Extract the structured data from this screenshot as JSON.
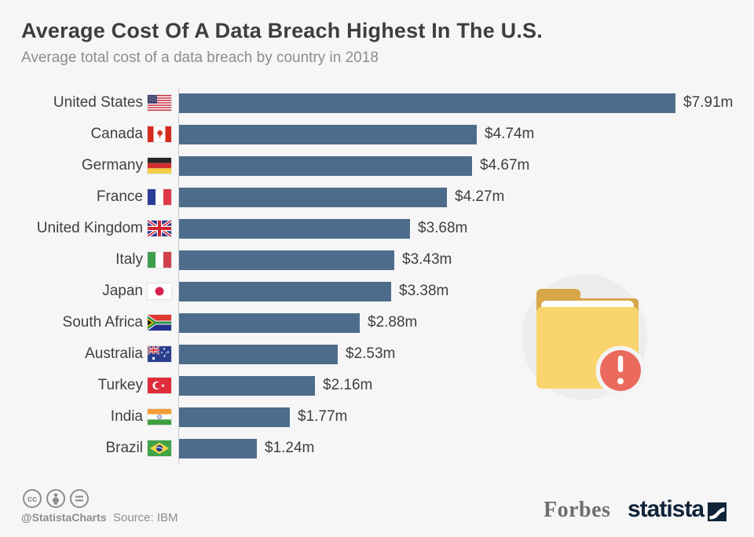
{
  "header": {
    "title": "Average Cost Of A Data Breach Highest In The U.S.",
    "subtitle": "Average total cost of a data breach by country in 2018"
  },
  "chart_data": {
    "type": "bar",
    "orientation": "horizontal",
    "title": "Average Cost Of A Data Breach Highest In The U.S.",
    "subtitle": "Average total cost of a data breach by country in 2018",
    "unit": "million US dollars",
    "categories": [
      "United States",
      "Canada",
      "Germany",
      "France",
      "United Kingdom",
      "Italy",
      "Japan",
      "South Africa",
      "Australia",
      "Turkey",
      "India",
      "Brazil"
    ],
    "values": [
      7.91,
      4.74,
      4.67,
      4.27,
      3.68,
      3.43,
      3.38,
      2.88,
      2.53,
      2.16,
      1.77,
      1.24
    ],
    "value_labels": [
      "$7.91m",
      "$4.74m",
      "$4.67m",
      "$4.27m",
      "$3.68m",
      "$3.43m",
      "$3.38m",
      "$2.88m",
      "$2.53m",
      "$2.16m",
      "$1.77m",
      "$1.24m"
    ],
    "flag_codes": [
      "us",
      "ca",
      "de",
      "fr",
      "gb",
      "it",
      "jp",
      "za",
      "au",
      "tr",
      "in",
      "br"
    ],
    "bar_color": "#4d6b8b",
    "xlim": [
      0,
      7.91
    ],
    "grid": false,
    "legend": false
  },
  "footer": {
    "license_icons": [
      "cc-icon",
      "attribution-person-icon",
      "no-derivatives-equals-icon"
    ],
    "handle": "@StatistaCharts",
    "source": "Source: IBM",
    "partner_brand": "Forbes",
    "brand": "statista"
  },
  "colors": {
    "background": "#f6f6f6",
    "bar": "#4d6b8b",
    "title_text": "#3e3e3e",
    "subtitle_text": "#8d8d8d",
    "label_text": "#3f3f3f",
    "axis_line": "#c9c9c9",
    "footer_text": "#8d8d8d",
    "statista_navy": "#0f2438",
    "forbes_gray": "#6e6e6e",
    "folder_yellow": "#f9d36b",
    "folder_dark_yellow": "#d7a74a",
    "alert_red": "#ea6a5e"
  }
}
